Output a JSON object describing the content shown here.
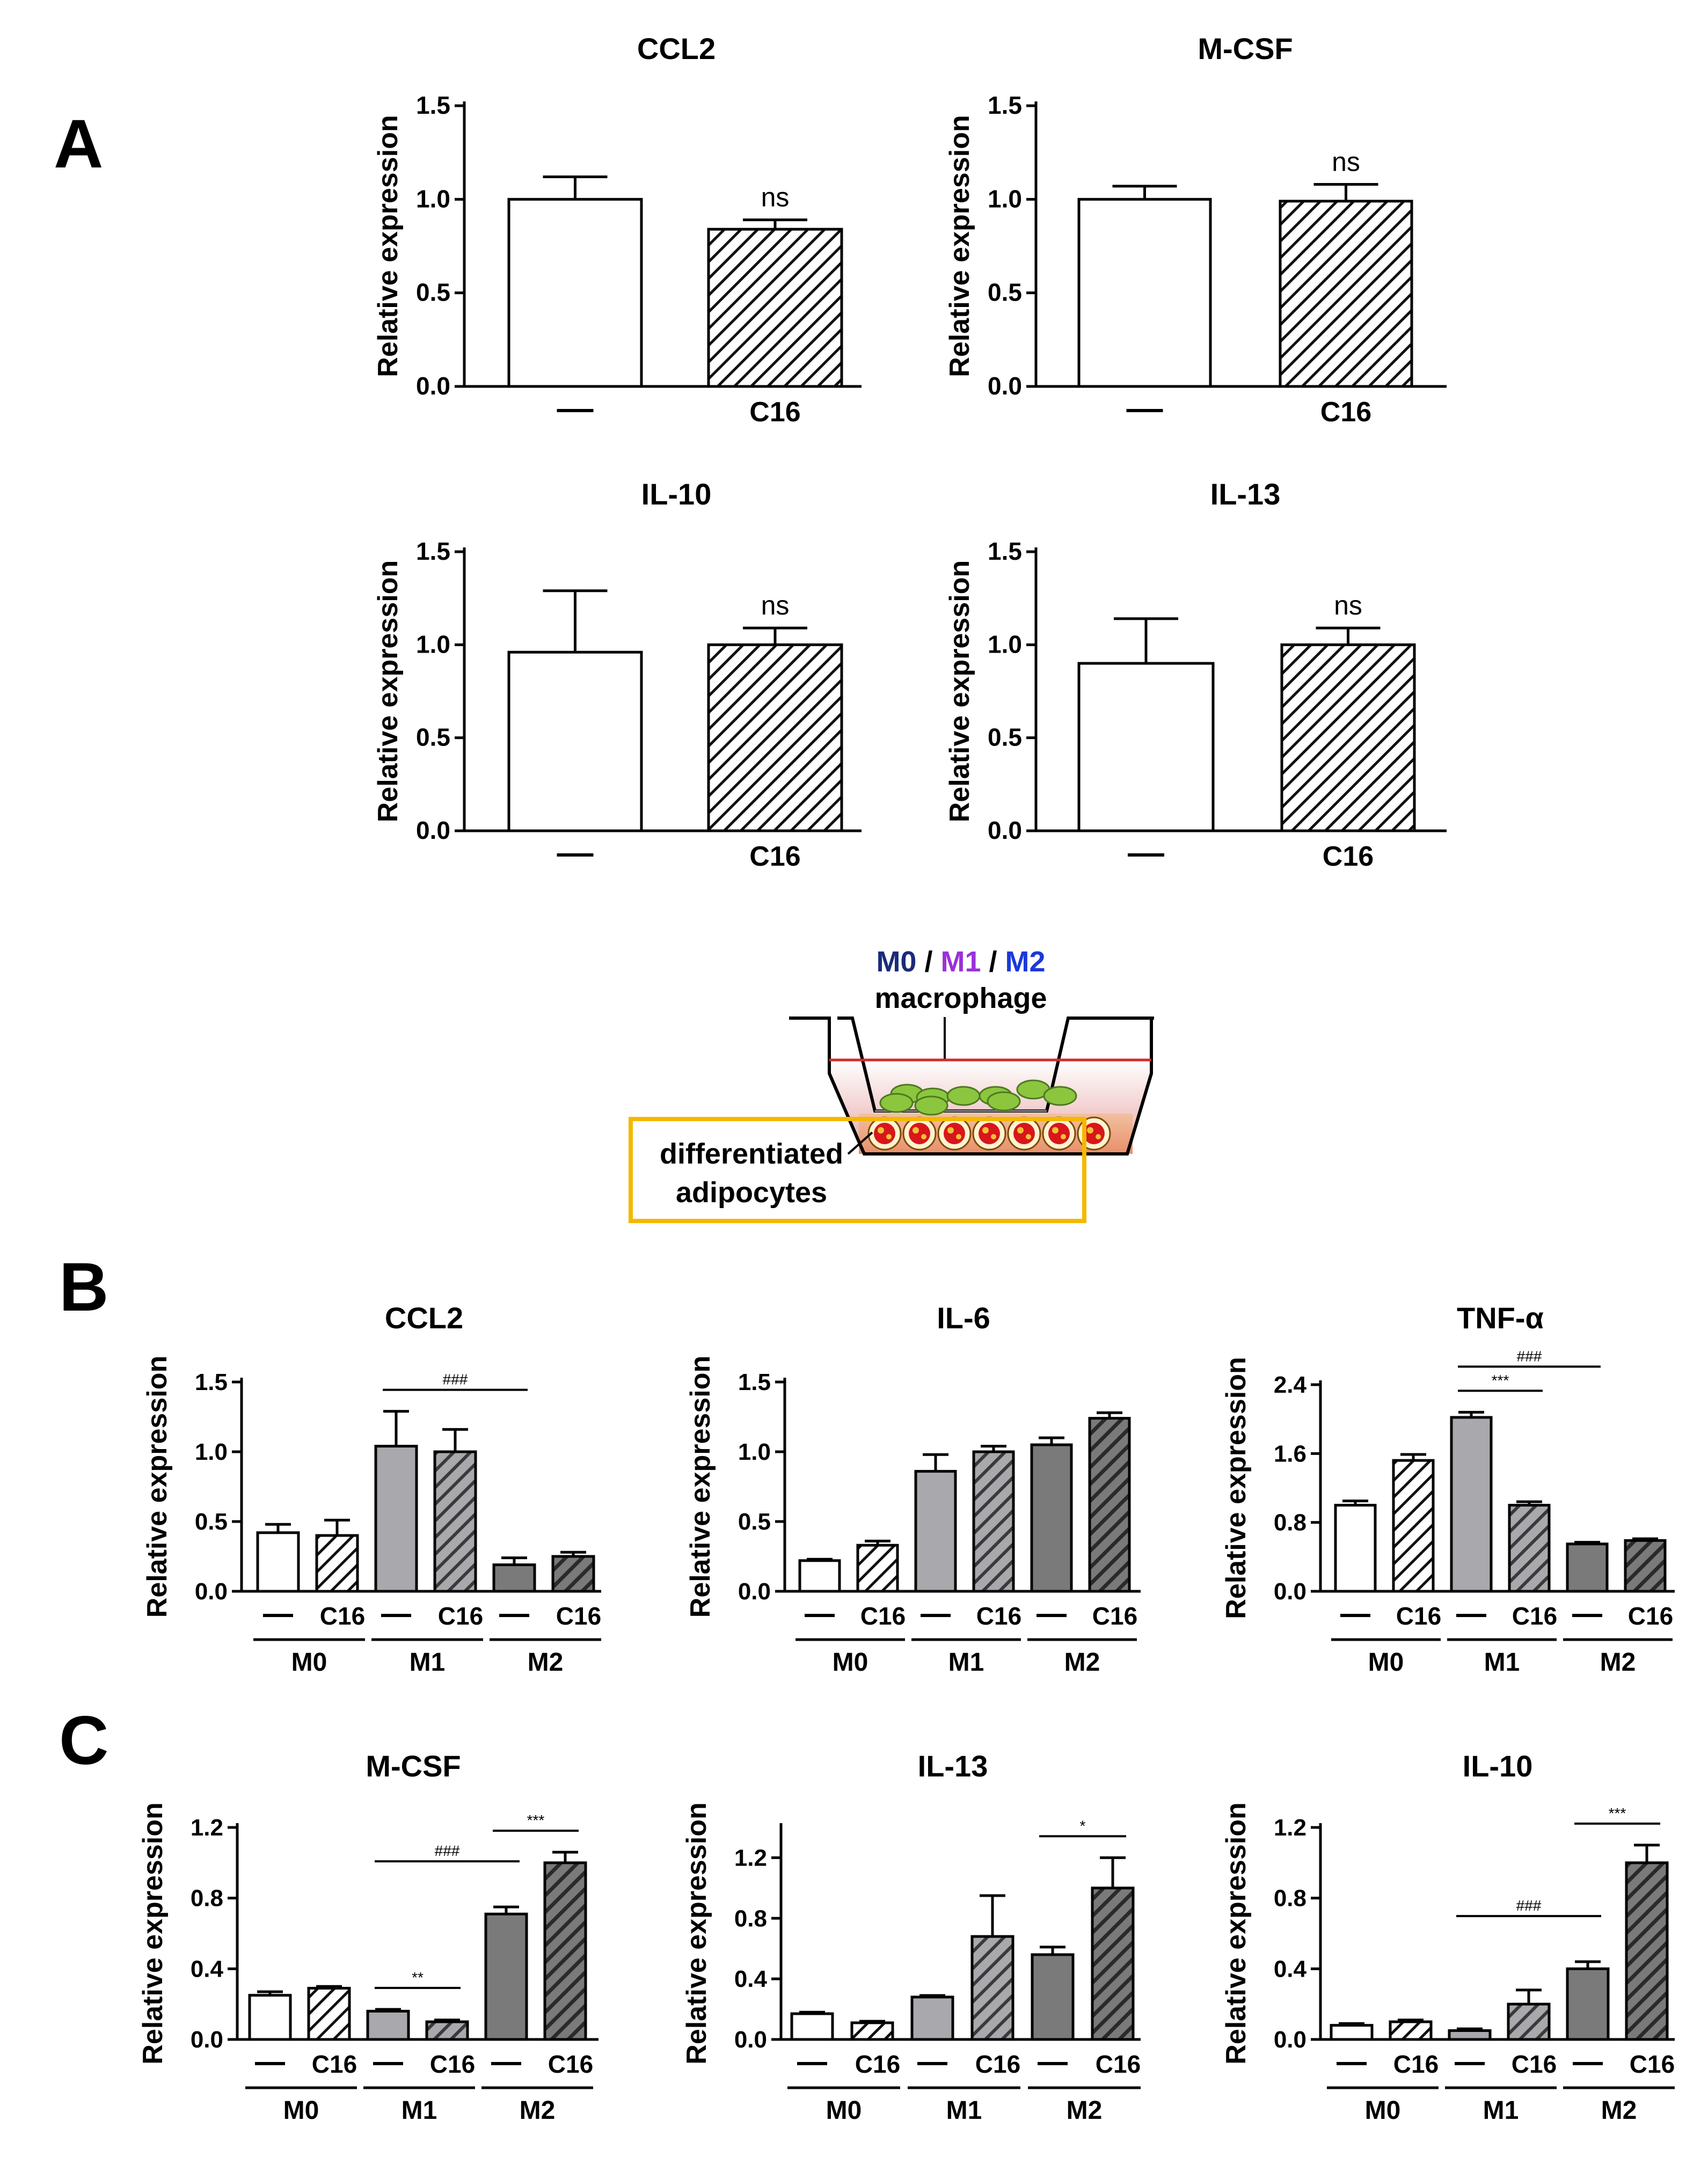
{
  "panels": {
    "A": "A",
    "B": "B",
    "C": "C"
  },
  "schematic": {
    "macro_types": [
      "M0",
      "M1",
      "M2"
    ],
    "separator": " / ",
    "macrophage_label": "macrophage",
    "adipocyte_line1": "differentiated",
    "adipocyte_line2": "adipocytes",
    "colors": {
      "M0": "#1a2b7a",
      "M1": "#9b30d9",
      "M2": "#1a3ad9",
      "box": "#f5b800",
      "medium_line": "#d42a2a",
      "macrophage_cell": "#8cc63f",
      "adipocyte": "#d8161b"
    }
  },
  "chart_data": [
    {
      "id": "A1",
      "type": "bar",
      "title": "CCL2",
      "ylabel": "Relative expression",
      "categories": [
        "—",
        "C16"
      ],
      "values": [
        1.0,
        0.84
      ],
      "errors": [
        0.12,
        0.05
      ],
      "annotations": [
        {
          "bar": 1,
          "text": "ns"
        }
      ],
      "ylim": [
        0,
        1.5
      ],
      "ticks": [
        "0.0",
        "0.5",
        "1.0",
        "1.5"
      ]
    },
    {
      "id": "A2",
      "type": "bar",
      "title": "M-CSF",
      "ylabel": "Relative expression",
      "categories": [
        "—",
        "C16"
      ],
      "values": [
        1.0,
        0.99
      ],
      "errors": [
        0.07,
        0.09
      ],
      "annotations": [
        {
          "bar": 1,
          "text": "ns"
        }
      ],
      "ylim": [
        0,
        1.5
      ],
      "ticks": [
        "0.0",
        "0.5",
        "1.0",
        "1.5"
      ]
    },
    {
      "id": "A3",
      "type": "bar",
      "title": "IL-10",
      "ylabel": "Relative expression",
      "categories": [
        "—",
        "C16"
      ],
      "values": [
        0.96,
        1.0
      ],
      "errors": [
        0.33,
        0.09
      ],
      "annotations": [
        {
          "bar": 1,
          "text": "ns"
        }
      ],
      "ylim": [
        0,
        1.5
      ],
      "ticks": [
        "0.0",
        "0.5",
        "1.0",
        "1.5"
      ]
    },
    {
      "id": "A4",
      "type": "bar",
      "title": "IL-13",
      "ylabel": "Relative expression",
      "categories": [
        "—",
        "C16"
      ],
      "values": [
        0.9,
        1.0
      ],
      "errors": [
        0.24,
        0.09
      ],
      "annotations": [
        {
          "bar": 1,
          "text": "ns"
        }
      ],
      "ylim": [
        0,
        1.5
      ],
      "ticks": [
        "0.0",
        "0.5",
        "1.0",
        "1.5"
      ]
    },
    {
      "id": "B1",
      "type": "bar",
      "title": "CCL2",
      "ylabel": "Relative expression",
      "categories": [
        "—",
        "C16",
        "—",
        "C16",
        "—",
        "C16"
      ],
      "groups": [
        "M0",
        "M1",
        "M2"
      ],
      "values": [
        0.42,
        0.4,
        1.04,
        1.0,
        0.19,
        0.25
      ],
      "errors": [
        0.06,
        0.11,
        0.25,
        0.16,
        0.05,
        0.03
      ],
      "ylim": [
        0,
        1.5
      ],
      "ticks": [
        "0.0",
        "0.5",
        "1.0",
        "1.5"
      ],
      "sig": [
        {
          "from": 2,
          "to": 4,
          "text": "###"
        }
      ]
    },
    {
      "id": "B2",
      "type": "bar",
      "title": "IL-6",
      "ylabel": "Relative expression",
      "categories": [
        "—",
        "C16",
        "—",
        "C16",
        "—",
        "C16"
      ],
      "groups": [
        "M0",
        "M1",
        "M2"
      ],
      "values": [
        0.22,
        0.33,
        0.86,
        1.0,
        1.05,
        1.24
      ],
      "errors": [
        0.01,
        0.03,
        0.12,
        0.04,
        0.05,
        0.04
      ],
      "ylim": [
        0,
        1.5
      ],
      "ticks": [
        "0.0",
        "0.5",
        "1.0",
        "1.5"
      ],
      "sig": []
    },
    {
      "id": "B3",
      "type": "bar",
      "title": "TNF-α",
      "ylabel": "Relative expression",
      "categories": [
        "—",
        "C16",
        "—",
        "C16",
        "—",
        "C16"
      ],
      "groups": [
        "M0",
        "M1",
        "M2"
      ],
      "values": [
        1.0,
        1.52,
        2.02,
        1.0,
        0.55,
        0.59
      ],
      "errors": [
        0.05,
        0.07,
        0.06,
        0.04,
        0.02,
        0.02
      ],
      "ylim": [
        0,
        2.4
      ],
      "ticks": [
        "0.0",
        "0.8",
        "1.6",
        "2.4"
      ],
      "sig": [
        {
          "from": 2,
          "to": 3,
          "text": "***"
        },
        {
          "from": 2,
          "to": 4,
          "text": "###"
        }
      ]
    },
    {
      "id": "C1",
      "type": "bar",
      "title": "M-CSF",
      "ylabel": "Relative expression",
      "categories": [
        "—",
        "C16",
        "—",
        "C16",
        "—",
        "C16"
      ],
      "groups": [
        "M0",
        "M1",
        "M2"
      ],
      "values": [
        0.25,
        0.29,
        0.16,
        0.1,
        0.71,
        1.0
      ],
      "errors": [
        0.02,
        0.01,
        0.01,
        0.01,
        0.04,
        0.06
      ],
      "ylim": [
        0,
        1.2
      ],
      "ticks": [
        "0.0",
        "0.4",
        "0.8",
        "1.2"
      ],
      "sig": [
        {
          "from": 2,
          "to": 3,
          "text": "**"
        },
        {
          "from": 2,
          "to": 4,
          "text": "###"
        },
        {
          "from": 4,
          "to": 5,
          "text": "***"
        }
      ]
    },
    {
      "id": "C2",
      "type": "bar",
      "title": "IL-13",
      "ylabel": "Relative expression",
      "categories": [
        "—",
        "C16",
        "—",
        "C16",
        "—",
        "C16"
      ],
      "groups": [
        "M0",
        "M1",
        "M2"
      ],
      "values": [
        0.17,
        0.11,
        0.28,
        0.68,
        0.56,
        1.0
      ],
      "errors": [
        0.01,
        0.01,
        0.01,
        0.27,
        0.05,
        0.2
      ],
      "ylim": [
        0,
        1.4
      ],
      "ticks": [
        "0.0",
        "0.4",
        "0.8",
        "1.2"
      ],
      "sig": [
        {
          "from": 4,
          "to": 5,
          "text": "*"
        }
      ]
    },
    {
      "id": "C3",
      "type": "bar",
      "title": "IL-10",
      "ylabel": "Relative expression",
      "categories": [
        "—",
        "C16",
        "—",
        "C16",
        "—",
        "C16"
      ],
      "groups": [
        "M0",
        "M1",
        "M2"
      ],
      "values": [
        0.08,
        0.1,
        0.05,
        0.2,
        0.4,
        1.0
      ],
      "errors": [
        0.01,
        0.01,
        0.01,
        0.08,
        0.04,
        0.1
      ],
      "ylim": [
        0,
        1.2
      ],
      "ticks": [
        "0.0",
        "0.4",
        "0.8",
        "1.2"
      ],
      "sig": [
        {
          "from": 2,
          "to": 4,
          "text": "###"
        },
        {
          "from": 4,
          "to": 5,
          "text": "***"
        }
      ]
    }
  ]
}
